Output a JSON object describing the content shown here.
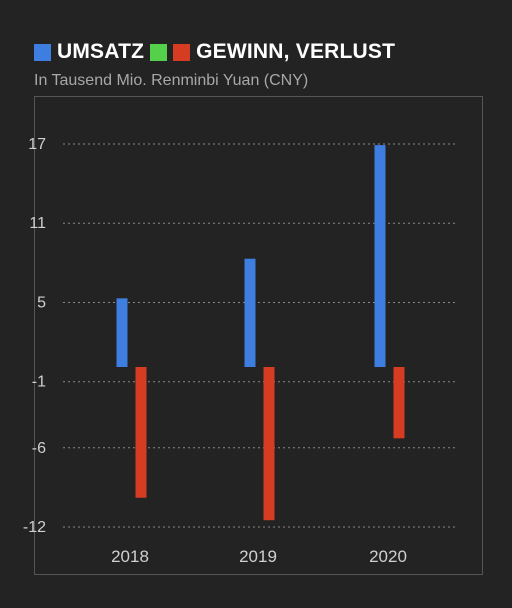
{
  "legend": {
    "items": [
      {
        "label": "UMSATZ",
        "color": "#3d7ee0"
      },
      {
        "label": "",
        "color": "#55d04a"
      },
      {
        "label": "GEWINN, VERLUST",
        "color": "#d63c22"
      }
    ]
  },
  "subtitle": "In Tausend Mio. Renminbi Yuan (CNY)",
  "chart_data": {
    "type": "bar",
    "categories": [
      "2018",
      "2019",
      "2020"
    ],
    "series": [
      {
        "name": "UMSATZ",
        "color": "#3d7ee0",
        "values": [
          5.2,
          8.2,
          16.8
        ]
      },
      {
        "name": "GEWINN, VERLUST",
        "color": "#d63c22",
        "values": [
          -9.9,
          -11.6,
          -5.4
        ]
      }
    ],
    "yticks": [
      17,
      11,
      5,
      -1,
      -6,
      -12
    ],
    "ylim": [
      -13,
      18.5
    ],
    "grid": true,
    "legend_position": "top-left",
    "subtitle": "In Tausend Mio. Renminbi Yuan (CNY)"
  }
}
